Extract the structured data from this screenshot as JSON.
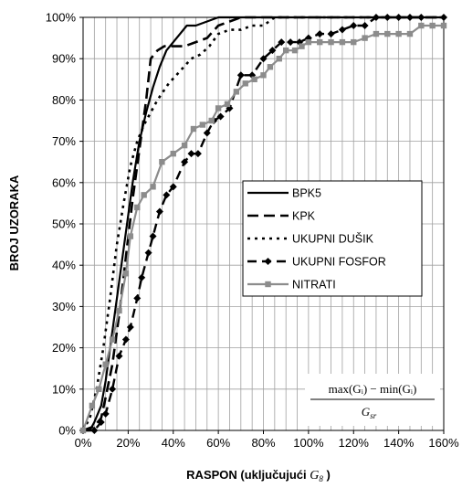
{
  "chart_data": {
    "type": "line",
    "xlabel_main": "RASPON (uključujući ",
    "xlabel_symbol": "G",
    "xlabel_sub": "8",
    "xlabel_end": " )",
    "ylabel": "BROJ UZORAKA",
    "xlim": [
      0,
      160
    ],
    "ylim": [
      0,
      100
    ],
    "x_ticks": [
      "0%",
      "20%",
      "40%",
      "60%",
      "80%",
      "100%",
      "120%",
      "140%",
      "160%"
    ],
    "y_ticks": [
      "0%",
      "10%",
      "20%",
      "30%",
      "40%",
      "50%",
      "60%",
      "70%",
      "80%",
      "90%",
      "100%"
    ],
    "grid": true,
    "legend_position": "right-middle",
    "formula": {
      "numerator": "max(Gᵢ) − min(Gᵢ)",
      "denominator": "G",
      "denominator_sub": "sr"
    },
    "series": [
      {
        "name": "BPK5",
        "style": "solid",
        "color": "#000000",
        "markers": false,
        "points": [
          [
            0,
            0
          ],
          [
            3,
            0
          ],
          [
            5,
            2
          ],
          [
            8,
            6
          ],
          [
            10,
            12
          ],
          [
            13,
            24
          ],
          [
            16,
            36
          ],
          [
            19,
            48
          ],
          [
            22,
            60
          ],
          [
            25,
            70
          ],
          [
            28,
            77
          ],
          [
            31,
            83
          ],
          [
            34,
            88
          ],
          [
            37,
            92
          ],
          [
            40,
            94
          ],
          [
            43,
            96
          ],
          [
            46,
            98
          ],
          [
            50,
            98
          ],
          [
            55,
            99
          ],
          [
            60,
            100
          ],
          [
            70,
            100
          ],
          [
            160,
            100
          ]
        ]
      },
      {
        "name": "KPK",
        "style": "dashed",
        "color": "#000000",
        "markers": false,
        "points": [
          [
            0,
            0
          ],
          [
            5,
            1
          ],
          [
            8,
            3
          ],
          [
            10,
            8
          ],
          [
            13,
            16
          ],
          [
            16,
            28
          ],
          [
            19,
            42
          ],
          [
            22,
            56
          ],
          [
            25,
            68
          ],
          [
            28,
            80
          ],
          [
            30,
            90
          ],
          [
            33,
            92
          ],
          [
            36,
            93
          ],
          [
            40,
            93
          ],
          [
            45,
            93
          ],
          [
            50,
            94
          ],
          [
            55,
            95
          ],
          [
            60,
            98
          ],
          [
            65,
            99
          ],
          [
            70,
            100
          ],
          [
            160,
            100
          ]
        ]
      },
      {
        "name": "UKUPNI DUŠIK",
        "style": "dotted",
        "color": "#000000",
        "markers": false,
        "points": [
          [
            0,
            0
          ],
          [
            3,
            3
          ],
          [
            6,
            10
          ],
          [
            9,
            20
          ],
          [
            12,
            32
          ],
          [
            15,
            45
          ],
          [
            18,
            55
          ],
          [
            21,
            64
          ],
          [
            24,
            70
          ],
          [
            27,
            74
          ],
          [
            30,
            77
          ],
          [
            33,
            80
          ],
          [
            38,
            84
          ],
          [
            43,
            87
          ],
          [
            48,
            90
          ],
          [
            52,
            91
          ],
          [
            56,
            93
          ],
          [
            60,
            96
          ],
          [
            65,
            97
          ],
          [
            70,
            97
          ],
          [
            75,
            98
          ],
          [
            80,
            98
          ],
          [
            85,
            100
          ],
          [
            160,
            100
          ]
        ]
      },
      {
        "name": "UKUPNI FOSFOR",
        "style": "long-dash",
        "color": "#000000",
        "markers": true,
        "marker": "diamond",
        "points": [
          [
            0,
            0
          ],
          [
            5,
            0
          ],
          [
            8,
            2
          ],
          [
            10,
            4
          ],
          [
            13,
            10
          ],
          [
            16,
            18
          ],
          [
            19,
            22
          ],
          [
            21,
            25
          ],
          [
            24,
            32
          ],
          [
            26,
            37
          ],
          [
            29,
            43
          ],
          [
            31,
            47
          ],
          [
            34,
            53
          ],
          [
            37,
            57
          ],
          [
            40,
            59
          ],
          [
            45,
            65
          ],
          [
            48,
            67
          ],
          [
            51,
            67
          ],
          [
            55,
            72
          ],
          [
            58,
            75
          ],
          [
            61,
            76
          ],
          [
            65,
            78
          ],
          [
            70,
            86
          ],
          [
            75,
            86
          ],
          [
            80,
            90
          ],
          [
            84,
            92
          ],
          [
            88,
            94
          ],
          [
            92,
            94
          ],
          [
            96,
            94
          ],
          [
            100,
            95
          ],
          [
            105,
            96
          ],
          [
            110,
            96
          ],
          [
            115,
            97
          ],
          [
            120,
            98
          ],
          [
            125,
            98
          ],
          [
            130,
            100
          ],
          [
            135,
            100
          ],
          [
            140,
            100
          ],
          [
            145,
            100
          ],
          [
            150,
            100
          ],
          [
            160,
            100
          ]
        ]
      },
      {
        "name": "NITRATI",
        "style": "solid",
        "color": "#8c8c8c",
        "markers": true,
        "marker": "square",
        "points": [
          [
            0,
            0
          ],
          [
            4,
            6
          ],
          [
            7,
            10
          ],
          [
            10,
            16
          ],
          [
            13,
            22
          ],
          [
            16,
            29
          ],
          [
            19,
            38
          ],
          [
            21,
            47
          ],
          [
            24,
            54
          ],
          [
            27,
            57
          ],
          [
            31,
            59
          ],
          [
            35,
            65
          ],
          [
            40,
            67
          ],
          [
            45,
            69
          ],
          [
            49,
            73
          ],
          [
            53,
            74
          ],
          [
            57,
            75
          ],
          [
            60,
            78
          ],
          [
            64,
            79
          ],
          [
            68,
            82
          ],
          [
            72,
            84
          ],
          [
            76,
            85
          ],
          [
            80,
            86
          ],
          [
            83,
            88
          ],
          [
            87,
            90
          ],
          [
            90,
            92
          ],
          [
            94,
            92
          ],
          [
            97,
            93
          ],
          [
            100,
            94
          ],
          [
            105,
            94
          ],
          [
            110,
            94
          ],
          [
            115,
            94
          ],
          [
            120,
            94
          ],
          [
            125,
            95
          ],
          [
            130,
            96
          ],
          [
            135,
            96
          ],
          [
            140,
            96
          ],
          [
            145,
            96
          ],
          [
            150,
            98
          ],
          [
            155,
            98
          ],
          [
            160,
            98
          ]
        ]
      }
    ]
  }
}
